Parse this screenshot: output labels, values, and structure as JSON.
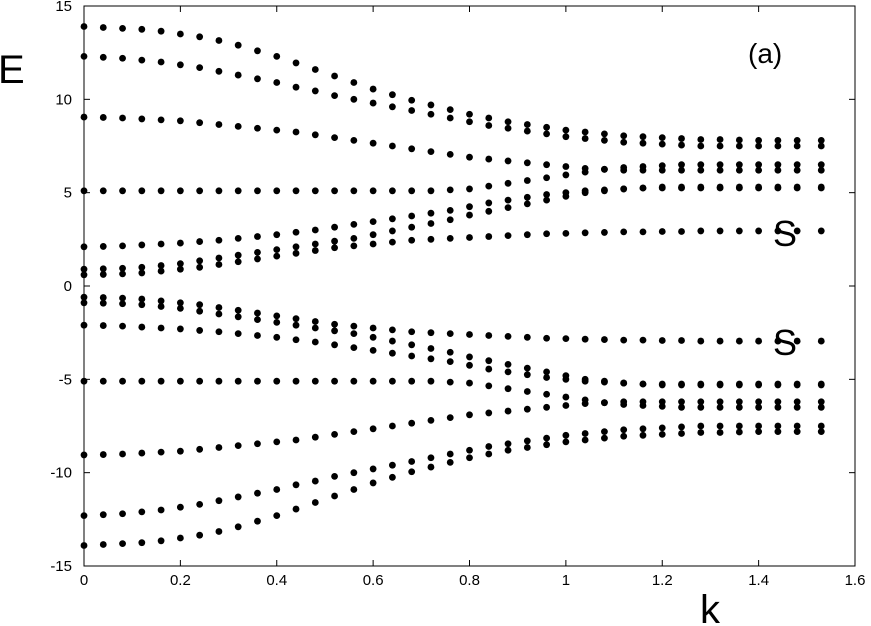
{
  "chart_data": {
    "type": "scatter",
    "xlim": [
      0,
      1.6
    ],
    "ylim": [
      -15,
      15
    ],
    "xlabel": "k",
    "ylabel": "E",
    "panel_label": "(a)",
    "grid": false,
    "legend": "none",
    "x_ticks": [
      "0",
      "0.2",
      "0.4",
      "0.6",
      "0.8",
      "1",
      "1.2",
      "1.4",
      "1.6"
    ],
    "y_ticks": [
      "-15",
      "-10",
      "-5",
      "0",
      "5",
      "10",
      "15"
    ],
    "annotations": [
      {
        "text": "S",
        "x": 1.46,
        "y": 2.9
      },
      {
        "text": "S",
        "x": 1.46,
        "y": -2.9
      }
    ],
    "marker_color": "#000000",
    "k": [
      0,
      0.04,
      0.08,
      0.12,
      0.16,
      0.2,
      0.24,
      0.28,
      0.32,
      0.36,
      0.4,
      0.44,
      0.48,
      0.52,
      0.56,
      0.6,
      0.64,
      0.68,
      0.72,
      0.76,
      0.8,
      0.84,
      0.88,
      0.92,
      0.96,
      1.0,
      1.04,
      1.08,
      1.12,
      1.16,
      1.2,
      1.24,
      1.28,
      1.32,
      1.36,
      1.4,
      1.44,
      1.48,
      1.53
    ],
    "series": [
      {
        "values": [
          13.9,
          13.85,
          13.8,
          13.75,
          13.65,
          13.5,
          13.35,
          13.15,
          12.9,
          12.6,
          12.3,
          11.95,
          11.6,
          11.25,
          10.9,
          10.55,
          10.25,
          9.95,
          9.7,
          9.45,
          9.2,
          9.0,
          8.8,
          8.65,
          8.5,
          8.35,
          8.25,
          8.15,
          8.05,
          8.0,
          7.95,
          7.9,
          7.85,
          7.85,
          7.82,
          7.8,
          7.8,
          7.8,
          7.8
        ]
      },
      {
        "values": [
          12.3,
          12.25,
          12.2,
          12.1,
          12.0,
          11.85,
          11.7,
          11.5,
          11.3,
          11.1,
          10.9,
          10.65,
          10.45,
          10.2,
          10.0,
          9.8,
          9.6,
          9.4,
          9.2,
          9.0,
          8.8,
          8.6,
          8.45,
          8.3,
          8.15,
          8.0,
          7.9,
          7.8,
          7.7,
          7.65,
          7.6,
          7.55,
          7.5,
          7.5,
          7.5,
          7.5,
          7.5,
          7.5,
          7.5
        ]
      },
      {
        "values": [
          9.05,
          9.03,
          9.0,
          8.95,
          8.9,
          8.85,
          8.75,
          8.65,
          8.55,
          8.45,
          8.35,
          8.25,
          8.1,
          7.95,
          7.8,
          7.65,
          7.5,
          7.35,
          7.2,
          7.05,
          6.9,
          6.8,
          6.7,
          6.6,
          6.5,
          6.4,
          6.3,
          6.25,
          6.2,
          6.2,
          6.2,
          6.2,
          6.2,
          6.2,
          6.2,
          6.2,
          6.2,
          6.2,
          6.2
        ]
      },
      {
        "values": [
          5.1,
          5.1,
          5.1,
          5.1,
          5.1,
          5.1,
          5.1,
          5.1,
          5.1,
          5.1,
          5.1,
          5.1,
          5.1,
          5.1,
          5.1,
          5.1,
          5.1,
          5.1,
          5.1,
          5.15,
          5.2,
          5.35,
          5.5,
          5.65,
          5.8,
          5.95,
          6.1,
          6.25,
          6.35,
          6.4,
          6.45,
          6.5,
          6.5,
          6.5,
          6.5,
          6.5,
          6.5,
          6.5,
          6.5
        ]
      },
      {
        "values": [
          2.1,
          2.12,
          2.15,
          2.2,
          2.25,
          2.3,
          2.38,
          2.45,
          2.55,
          2.65,
          2.75,
          2.88,
          3.0,
          3.15,
          3.3,
          3.45,
          3.6,
          3.75,
          3.9,
          4.05,
          4.25,
          4.45,
          4.6,
          4.75,
          4.9,
          5.0,
          5.1,
          5.15,
          5.2,
          5.25,
          5.25,
          5.25,
          5.25,
          5.25,
          5.25,
          5.25,
          5.25,
          5.25,
          5.25
        ]
      },
      {
        "values": [
          0.9,
          0.92,
          0.95,
          1.0,
          1.1,
          1.2,
          1.35,
          1.5,
          1.65,
          1.8,
          1.95,
          2.1,
          2.25,
          2.4,
          2.55,
          2.75,
          2.95,
          3.15,
          3.35,
          3.55,
          3.8,
          4.0,
          4.2,
          4.4,
          4.6,
          4.8,
          5.0,
          5.1,
          5.2,
          5.25,
          5.3,
          5.3,
          5.3,
          5.3,
          5.3,
          5.3,
          5.3,
          5.3,
          5.3
        ]
      },
      {
        "values": [
          0.6,
          0.62,
          0.65,
          0.7,
          0.8,
          0.9,
          1.0,
          1.15,
          1.3,
          1.45,
          1.6,
          1.75,
          1.9,
          2.05,
          2.15,
          2.25,
          2.35,
          2.45,
          2.5,
          2.55,
          2.6,
          2.65,
          2.7,
          2.75,
          2.8,
          2.82,
          2.85,
          2.87,
          2.9,
          2.9,
          2.92,
          2.92,
          2.95,
          2.95,
          2.95,
          2.95,
          2.95,
          2.95,
          2.95
        ]
      },
      {
        "values": [
          -0.6,
          -0.62,
          -0.65,
          -0.7,
          -0.8,
          -0.9,
          -1.0,
          -1.15,
          -1.3,
          -1.45,
          -1.6,
          -1.75,
          -1.9,
          -2.05,
          -2.15,
          -2.25,
          -2.35,
          -2.45,
          -2.5,
          -2.55,
          -2.6,
          -2.65,
          -2.7,
          -2.75,
          -2.8,
          -2.82,
          -2.85,
          -2.87,
          -2.9,
          -2.9,
          -2.92,
          -2.92,
          -2.95,
          -2.95,
          -2.95,
          -2.95,
          -2.95,
          -2.95,
          -2.95
        ]
      },
      {
        "values": [
          -0.9,
          -0.92,
          -0.95,
          -1.0,
          -1.1,
          -1.2,
          -1.35,
          -1.5,
          -1.65,
          -1.8,
          -1.95,
          -2.1,
          -2.25,
          -2.4,
          -2.55,
          -2.75,
          -2.95,
          -3.15,
          -3.35,
          -3.55,
          -3.8,
          -4.0,
          -4.2,
          -4.4,
          -4.6,
          -4.8,
          -5.0,
          -5.1,
          -5.2,
          -5.25,
          -5.3,
          -5.3,
          -5.3,
          -5.3,
          -5.3,
          -5.3,
          -5.3,
          -5.3,
          -5.3
        ]
      },
      {
        "values": [
          -2.1,
          -2.12,
          -2.15,
          -2.2,
          -2.25,
          -2.3,
          -2.38,
          -2.45,
          -2.55,
          -2.65,
          -2.75,
          -2.88,
          -3.0,
          -3.15,
          -3.3,
          -3.45,
          -3.6,
          -3.75,
          -3.9,
          -4.05,
          -4.25,
          -4.45,
          -4.6,
          -4.75,
          -4.9,
          -5.0,
          -5.1,
          -5.15,
          -5.2,
          -5.25,
          -5.25,
          -5.25,
          -5.25,
          -5.25,
          -5.25,
          -5.25,
          -5.25,
          -5.25,
          -5.25
        ]
      },
      {
        "values": [
          -5.1,
          -5.1,
          -5.1,
          -5.1,
          -5.1,
          -5.1,
          -5.1,
          -5.1,
          -5.1,
          -5.1,
          -5.1,
          -5.1,
          -5.1,
          -5.1,
          -5.1,
          -5.1,
          -5.1,
          -5.1,
          -5.1,
          -5.15,
          -5.2,
          -5.35,
          -5.5,
          -5.65,
          -5.8,
          -5.95,
          -6.1,
          -6.25,
          -6.35,
          -6.4,
          -6.45,
          -6.5,
          -6.5,
          -6.5,
          -6.5,
          -6.5,
          -6.5,
          -6.5,
          -6.5
        ]
      },
      {
        "values": [
          -9.05,
          -9.03,
          -9.0,
          -8.95,
          -8.9,
          -8.85,
          -8.75,
          -8.65,
          -8.55,
          -8.45,
          -8.35,
          -8.25,
          -8.1,
          -7.95,
          -7.8,
          -7.65,
          -7.5,
          -7.35,
          -7.2,
          -7.05,
          -6.9,
          -6.8,
          -6.7,
          -6.6,
          -6.5,
          -6.4,
          -6.3,
          -6.25,
          -6.2,
          -6.2,
          -6.2,
          -6.2,
          -6.2,
          -6.2,
          -6.2,
          -6.2,
          -6.2,
          -6.2,
          -6.2
        ]
      },
      {
        "values": [
          -12.3,
          -12.25,
          -12.2,
          -12.1,
          -12.0,
          -11.85,
          -11.7,
          -11.5,
          -11.3,
          -11.1,
          -10.9,
          -10.65,
          -10.45,
          -10.2,
          -10.0,
          -9.8,
          -9.6,
          -9.4,
          -9.2,
          -9.0,
          -8.8,
          -8.6,
          -8.45,
          -8.3,
          -8.15,
          -8.0,
          -7.9,
          -7.8,
          -7.7,
          -7.65,
          -7.6,
          -7.55,
          -7.5,
          -7.5,
          -7.5,
          -7.5,
          -7.5,
          -7.5,
          -7.5
        ]
      },
      {
        "values": [
          -13.9,
          -13.85,
          -13.8,
          -13.75,
          -13.65,
          -13.5,
          -13.35,
          -13.15,
          -12.9,
          -12.6,
          -12.3,
          -11.95,
          -11.6,
          -11.25,
          -10.9,
          -10.55,
          -10.25,
          -9.95,
          -9.7,
          -9.45,
          -9.2,
          -9.0,
          -8.8,
          -8.65,
          -8.5,
          -8.35,
          -8.25,
          -8.15,
          -8.05,
          -8.0,
          -7.95,
          -7.9,
          -7.85,
          -7.85,
          -7.82,
          -7.8,
          -7.8,
          -7.8,
          -7.8
        ]
      }
    ]
  }
}
